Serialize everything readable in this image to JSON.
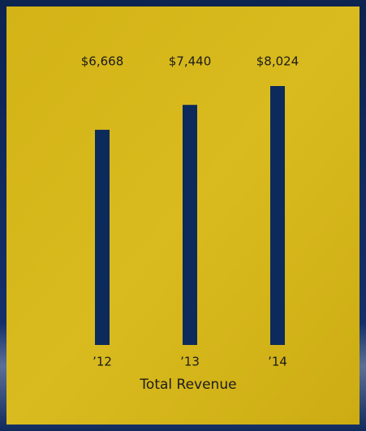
{
  "chart_data": {
    "type": "bar",
    "title": "Total Revenue",
    "categories": [
      "’12",
      "’13",
      "’14"
    ],
    "values": [
      6668,
      7440,
      8024
    ],
    "value_labels": [
      "$6,668",
      "$7,440",
      "$8,024"
    ],
    "color": "#0c2a5c"
  }
}
